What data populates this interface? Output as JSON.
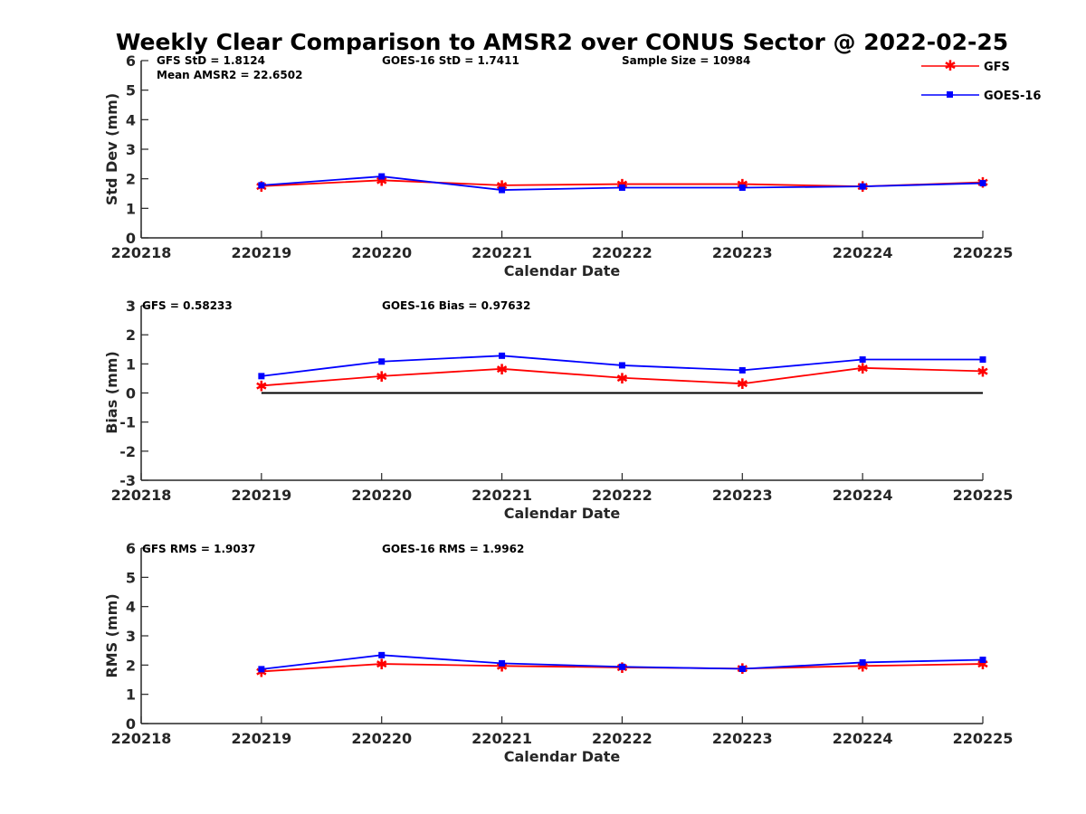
{
  "title": "Weekly Clear Comparison to AMSR2 over CONUS Sector @ 2022-02-25",
  "legend": {
    "position": "top-right",
    "entries": [
      "GFS",
      "GOES-16"
    ]
  },
  "colors": {
    "GFS": "#ff0000",
    "GOES-16": "#0000ff",
    "zero_line": "#000000",
    "axes": "#262626"
  },
  "chart_data": [
    {
      "type": "line",
      "title": "Weekly Clear Comparison to AMSR2 over CONUS Sector @ 2022-02-25",
      "xlabel": "Calendar Date",
      "ylabel": "Std Dev (mm)",
      "x_ticks": [
        "220218",
        "220219",
        "220220",
        "220221",
        "220222",
        "220223",
        "220224",
        "220225"
      ],
      "ylim": [
        0,
        6
      ],
      "y_ticks": [
        "0",
        "1",
        "2",
        "3",
        "4",
        "5",
        "6"
      ],
      "grid": false,
      "annotations": [
        "GFS StD = 1.8124",
        "Mean AMSR2 = 22.6502",
        "GOES-16 StD = 1.7411",
        "Sample Size = 10984"
      ],
      "x": [
        "220219",
        "220220",
        "220221",
        "220222",
        "220223",
        "220224",
        "220225"
      ],
      "series": [
        {
          "name": "GFS",
          "values": [
            1.75,
            1.95,
            1.78,
            1.82,
            1.82,
            1.74,
            1.88
          ]
        },
        {
          "name": "GOES-16",
          "values": [
            1.78,
            2.08,
            1.62,
            1.7,
            1.7,
            1.74,
            1.85
          ]
        }
      ]
    },
    {
      "type": "line",
      "xlabel": "Calendar Date",
      "ylabel": "Bias (mm)",
      "x_ticks": [
        "220218",
        "220219",
        "220220",
        "220221",
        "220222",
        "220223",
        "220224",
        "220225"
      ],
      "ylim": [
        -3,
        3
      ],
      "y_ticks": [
        "-3",
        "-2",
        "-1",
        "0",
        "1",
        "2",
        "3"
      ],
      "grid": false,
      "zero_line": true,
      "annotations": [
        "GFS = 0.58233",
        "GOES-16 Bias  = 0.97632"
      ],
      "x": [
        "220219",
        "220220",
        "220221",
        "220222",
        "220223",
        "220224",
        "220225"
      ],
      "series": [
        {
          "name": "GFS",
          "values": [
            0.25,
            0.58,
            0.83,
            0.52,
            0.32,
            0.86,
            0.75
          ]
        },
        {
          "name": "GOES-16",
          "values": [
            0.58,
            1.08,
            1.28,
            0.95,
            0.78,
            1.15,
            1.15
          ]
        }
      ]
    },
    {
      "type": "line",
      "xlabel": "Calendar Date",
      "ylabel": "RMS (mm)",
      "x_ticks": [
        "220218",
        "220219",
        "220220",
        "220221",
        "220222",
        "220223",
        "220224",
        "220225"
      ],
      "ylim": [
        0,
        6
      ],
      "y_ticks": [
        "0",
        "1",
        "2",
        "3",
        "4",
        "5",
        "6"
      ],
      "grid": false,
      "annotations": [
        "GFS RMS = 1.9037",
        "GOES-16 RMS = 1.9962"
      ],
      "x": [
        "220219",
        "220220",
        "220221",
        "220222",
        "220223",
        "220224",
        "220225"
      ],
      "series": [
        {
          "name": "GFS",
          "values": [
            1.78,
            2.04,
            1.97,
            1.92,
            1.88,
            1.97,
            2.04
          ]
        },
        {
          "name": "GOES-16",
          "values": [
            1.86,
            2.34,
            2.06,
            1.94,
            1.87,
            2.09,
            2.18
          ]
        }
      ]
    }
  ]
}
